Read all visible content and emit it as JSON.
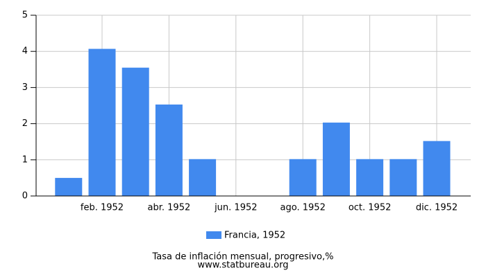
{
  "chart_data": {
    "type": "bar",
    "title": "Tasa de inflación mensual, progresivo,%",
    "source": "www.statbureau.org",
    "categories": [
      null,
      "feb. 1952",
      null,
      "abr. 1952",
      null,
      "jun. 1952",
      null,
      "ago. 1952",
      null,
      "oct. 1952",
      null,
      "dic. 1952"
    ],
    "series": [
      {
        "name": "Francia, 1952",
        "color": "#4189ee",
        "values": [
          0.5,
          4.07,
          3.55,
          2.53,
          1.02,
          0,
          0,
          1.02,
          2.03,
          1.02,
          1.02,
          1.52
        ]
      }
    ],
    "ylim": [
      0,
      5
    ],
    "yticks": [
      0,
      1,
      2,
      3,
      4,
      5
    ],
    "grid": true
  }
}
